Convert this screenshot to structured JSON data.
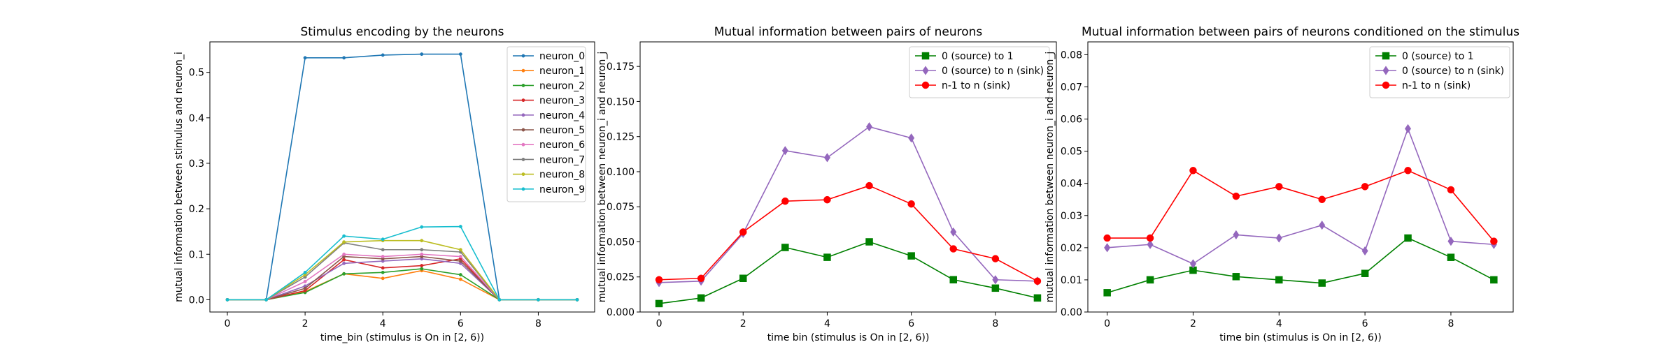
{
  "chart_data": [
    {
      "type": "line",
      "title": "Stimulus encoding by the neurons",
      "xlabel": "time_bin (stimulus is On in [2, 6))",
      "ylabel": "mutual information between stimulus and neuron_i",
      "xlim": [
        -0.45,
        9.45
      ],
      "ylim": [
        -0.027,
        0.567
      ],
      "xticks": [
        0,
        2,
        4,
        6,
        8
      ],
      "yticks": [
        0.0,
        0.1,
        0.2,
        0.3,
        0.4,
        0.5
      ],
      "ytick_labels": [
        "0.0",
        "0.1",
        "0.2",
        "0.3",
        "0.4",
        "0.5"
      ],
      "grid": false,
      "legend_loc": "upper-right",
      "marker_size": 2.2,
      "x": [
        0,
        1,
        2,
        3,
        4,
        5,
        6,
        7,
        8,
        9
      ],
      "series": [
        {
          "name": "neuron_0",
          "color": "#1f77b4",
          "marker": "circle",
          "values": [
            0.0,
            0.0,
            0.532,
            0.532,
            0.538,
            0.54,
            0.54,
            0.0,
            0.0,
            0.0
          ]
        },
        {
          "name": "neuron_1",
          "color": "#ff7f0e",
          "marker": "circle",
          "values": [
            0.0,
            0.0,
            0.018,
            0.057,
            0.047,
            0.064,
            0.045,
            0.0,
            0.0,
            0.0
          ]
        },
        {
          "name": "neuron_2",
          "color": "#2ca02c",
          "marker": "circle",
          "values": [
            0.0,
            0.0,
            0.016,
            0.057,
            0.06,
            0.068,
            0.055,
            0.0,
            0.0,
            0.0
          ]
        },
        {
          "name": "neuron_3",
          "color": "#d62728",
          "marker": "circle",
          "values": [
            0.0,
            0.0,
            0.02,
            0.088,
            0.07,
            0.075,
            0.09,
            0.0,
            0.0,
            0.0
          ]
        },
        {
          "name": "neuron_4",
          "color": "#9467bd",
          "marker": "circle",
          "values": [
            0.0,
            0.0,
            0.03,
            0.08,
            0.085,
            0.09,
            0.08,
            0.0,
            0.0,
            0.0
          ]
        },
        {
          "name": "neuron_5",
          "color": "#8c564b",
          "marker": "circle",
          "values": [
            0.0,
            0.0,
            0.025,
            0.095,
            0.09,
            0.095,
            0.085,
            0.0,
            0.0,
            0.0
          ]
        },
        {
          "name": "neuron_6",
          "color": "#e377c2",
          "marker": "circle",
          "values": [
            0.0,
            0.0,
            0.04,
            0.1,
            0.095,
            0.1,
            0.095,
            0.0,
            0.0,
            0.0
          ]
        },
        {
          "name": "neuron_7",
          "color": "#7f7f7f",
          "marker": "circle",
          "values": [
            0.0,
            0.0,
            0.05,
            0.125,
            0.11,
            0.11,
            0.105,
            0.0,
            0.0,
            0.0
          ]
        },
        {
          "name": "neuron_8",
          "color": "#bcbd22",
          "marker": "circle",
          "values": [
            0.0,
            0.0,
            0.055,
            0.127,
            0.13,
            0.13,
            0.11,
            0.0,
            0.0,
            0.0
          ]
        },
        {
          "name": "neuron_9",
          "color": "#17becf",
          "marker": "circle",
          "values": [
            0.0,
            0.0,
            0.06,
            0.14,
            0.133,
            0.16,
            0.161,
            0.0,
            0.0,
            0.0
          ]
        }
      ]
    },
    {
      "type": "line",
      "title": "Mutual information between pairs of neurons",
      "xlabel": "time bin (stimulus is On in [2, 6))",
      "ylabel": "mutual information between neuron_i and neuron_j",
      "xlim": [
        -0.45,
        9.45
      ],
      "ylim": [
        0.0,
        0.1925
      ],
      "xticks": [
        0,
        2,
        4,
        6,
        8
      ],
      "yticks": [
        0.0,
        0.025,
        0.05,
        0.075,
        0.1,
        0.125,
        0.15,
        0.175
      ],
      "ytick_labels": [
        "0.000",
        "0.025",
        "0.050",
        "0.075",
        "0.100",
        "0.125",
        "0.150",
        "0.175"
      ],
      "grid": false,
      "legend_loc": "upper-right",
      "marker_size": 5,
      "x": [
        0,
        1,
        2,
        3,
        4,
        5,
        6,
        7,
        8,
        9
      ],
      "series": [
        {
          "name": "0 (source) to 1",
          "color": "#008000",
          "marker": "square",
          "values": [
            0.006,
            0.01,
            0.024,
            0.046,
            0.039,
            0.05,
            0.04,
            0.023,
            0.017,
            0.01
          ]
        },
        {
          "name": "0 (source) to n (sink)",
          "color": "#9467bd",
          "marker": "diamond",
          "values": [
            0.021,
            0.022,
            0.056,
            0.115,
            0.11,
            0.132,
            0.124,
            0.057,
            0.023,
            0.022
          ]
        },
        {
          "name": "n-1 to n (sink)",
          "color": "#ff0000",
          "marker": "circle",
          "values": [
            0.023,
            0.024,
            0.057,
            0.079,
            0.08,
            0.09,
            0.077,
            0.045,
            0.038,
            0.022
          ]
        }
      ]
    },
    {
      "type": "line",
      "title": "Mutual information between pairs of neurons conditioned on the stimulus",
      "xlabel": "time bin (stimulus is On in [2, 6))",
      "ylabel": "mutual information between neuron_i and neuron_j",
      "xlim": [
        -0.45,
        9.45
      ],
      "ylim": [
        0.0,
        0.084
      ],
      "xticks": [
        0,
        2,
        4,
        6,
        8
      ],
      "yticks": [
        0.0,
        0.01,
        0.02,
        0.03,
        0.04,
        0.05,
        0.06,
        0.07,
        0.08
      ],
      "ytick_labels": [
        "0.00",
        "0.01",
        "0.02",
        "0.03",
        "0.04",
        "0.05",
        "0.06",
        "0.07",
        "0.08"
      ],
      "grid": false,
      "legend_loc": "upper-right",
      "marker_size": 5,
      "x": [
        0,
        1,
        2,
        3,
        4,
        5,
        6,
        7,
        8,
        9
      ],
      "series": [
        {
          "name": "0 (source) to 1",
          "color": "#008000",
          "marker": "square",
          "values": [
            0.006,
            0.01,
            0.013,
            0.011,
            0.01,
            0.009,
            0.012,
            0.023,
            0.017,
            0.01
          ]
        },
        {
          "name": "0 (source) to n (sink)",
          "color": "#9467bd",
          "marker": "diamond",
          "values": [
            0.02,
            0.021,
            0.015,
            0.024,
            0.023,
            0.027,
            0.019,
            0.057,
            0.022,
            0.021
          ]
        },
        {
          "name": "n-1 to n (sink)",
          "color": "#ff0000",
          "marker": "circle",
          "values": [
            0.023,
            0.023,
            0.044,
            0.036,
            0.039,
            0.035,
            0.039,
            0.044,
            0.038,
            0.022
          ]
        }
      ]
    }
  ]
}
